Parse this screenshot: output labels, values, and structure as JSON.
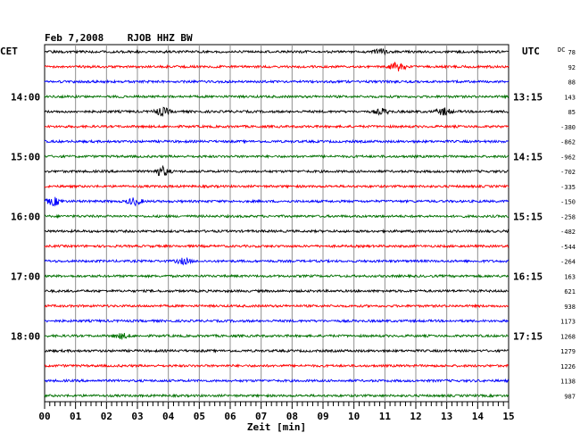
{
  "chart_data": {
    "type": "line",
    "title": "Feb 7,2008    RJOB HHZ BW",
    "left_timezone_label": "CET",
    "right_timezone_label": "UTC",
    "dc_label": "DC",
    "xlabel": "Zeit [min]",
    "xlim": [
      0,
      15
    ],
    "x_ticks": [
      "00",
      "01",
      "02",
      "03",
      "04",
      "05",
      "06",
      "07",
      "08",
      "09",
      "10",
      "11",
      "12",
      "13",
      "14",
      "15"
    ],
    "grid": true,
    "left_time_labels": [
      {
        "trace": 3,
        "label": "14:00"
      },
      {
        "trace": 7,
        "label": "15:00"
      },
      {
        "trace": 11,
        "label": "16:00"
      },
      {
        "trace": 15,
        "label": "17:00"
      },
      {
        "trace": 19,
        "label": "18:00"
      }
    ],
    "right_time_labels": [
      {
        "trace": 3,
        "label": "13:15"
      },
      {
        "trace": 7,
        "label": "14:15"
      },
      {
        "trace": 11,
        "label": "15:15"
      },
      {
        "trace": 15,
        "label": "16:15"
      },
      {
        "trace": 19,
        "label": "17:15"
      }
    ],
    "dc_offsets": [
      "78",
      "92",
      "88",
      "143",
      "85",
      "-380",
      "-862",
      "-962",
      "-702",
      "-335",
      "-150",
      "-258",
      "-482",
      "-544",
      "-264",
      "163",
      "621",
      "938",
      "1173",
      "1268",
      "1279",
      "1226",
      "1138",
      "987"
    ],
    "series_colors": [
      "#000000",
      "#ff0000",
      "#0000ff",
      "#007000"
    ],
    "events": [
      {
        "trace": 0,
        "minute": 10.8,
        "strength": 1.6
      },
      {
        "trace": 1,
        "minute": 11.4,
        "strength": 2.2
      },
      {
        "trace": 4,
        "minute": 3.8,
        "strength": 2.0
      },
      {
        "trace": 4,
        "minute": 10.9,
        "strength": 1.4
      },
      {
        "trace": 4,
        "minute": 12.9,
        "strength": 1.8
      },
      {
        "trace": 8,
        "minute": 3.8,
        "strength": 2.4
      },
      {
        "trace": 10,
        "minute": 0.3,
        "strength": 2.0
      },
      {
        "trace": 10,
        "minute": 2.9,
        "strength": 1.8
      },
      {
        "trace": 14,
        "minute": 4.5,
        "strength": 1.4
      },
      {
        "trace": 19,
        "minute": 2.5,
        "strength": 1.3
      }
    ]
  }
}
